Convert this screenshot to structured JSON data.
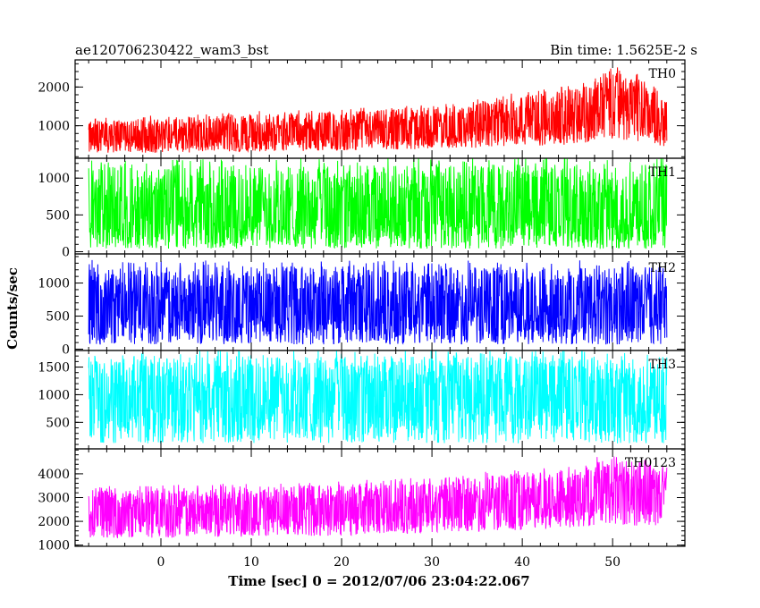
{
  "chart_data": {
    "type": "line",
    "title_left": "ae120706230422_wam3_bst",
    "title_right": "Bin time: 1.5625E-2 s",
    "xlabel": "Time [sec] 0 = 2012/07/06 23:04:22.067",
    "ylabel": "Counts/sec",
    "xlim": [
      -9.5,
      58
    ],
    "data_x_range": [
      -8,
      56
    ],
    "x_ticks": [
      0,
      10,
      20,
      30,
      40,
      50
    ],
    "x_tick_labels": [
      "0",
      "10",
      "20",
      "30",
      "40",
      "50"
    ],
    "panels": [
      {
        "name": "TH0",
        "color": "#ff0000",
        "ylim": [
          160,
          2700
        ],
        "y_ticks": [
          1000,
          2000
        ],
        "y_tick_labels": [
          "1000",
          "2000"
        ],
        "envelope": [
          {
            "x": -8,
            "low": 300,
            "mean": 700,
            "high": 1150
          },
          {
            "x": 0,
            "low": 300,
            "mean": 700,
            "high": 1200
          },
          {
            "x": 10,
            "low": 330,
            "mean": 760,
            "high": 1300
          },
          {
            "x": 20,
            "low": 360,
            "mean": 800,
            "high": 1350
          },
          {
            "x": 30,
            "low": 400,
            "mean": 900,
            "high": 1500
          },
          {
            "x": 38,
            "low": 450,
            "mean": 1000,
            "high": 1700
          },
          {
            "x": 45,
            "low": 500,
            "mean": 1150,
            "high": 1950
          },
          {
            "x": 50,
            "low": 650,
            "mean": 1600,
            "high": 2500
          },
          {
            "x": 53,
            "low": 600,
            "mean": 1450,
            "high": 2200
          },
          {
            "x": 56,
            "low": 450,
            "mean": 1050,
            "high": 1650
          }
        ]
      },
      {
        "name": "TH1",
        "color": "#00ff00",
        "ylim": [
          -30,
          1270
        ],
        "y_ticks": [
          0,
          500,
          1000
        ],
        "y_tick_labels": [
          "0",
          "500",
          "1000"
        ],
        "envelope": [
          {
            "x": -8,
            "low": 40,
            "mean": 500,
            "high": 1150
          },
          {
            "x": 56,
            "low": 40,
            "mean": 500,
            "high": 1200
          }
        ]
      },
      {
        "name": "TH2",
        "color": "#0000ff",
        "ylim": [
          -20,
          1440
        ],
        "y_ticks": [
          0,
          500,
          1000
        ],
        "y_tick_labels": [
          "0",
          "500",
          "1000"
        ],
        "envelope": [
          {
            "x": -8,
            "low": 70,
            "mean": 600,
            "high": 1250
          },
          {
            "x": 56,
            "low": 70,
            "mean": 600,
            "high": 1250
          }
        ]
      },
      {
        "name": "TH3",
        "color": "#00ffff",
        "ylim": [
          20,
          1800
        ],
        "y_ticks": [
          500,
          1000,
          1500
        ],
        "y_tick_labels": [
          "500",
          "1000",
          "1500"
        ],
        "envelope": [
          {
            "x": -8,
            "low": 120,
            "mean": 950,
            "high": 1700
          },
          {
            "x": 56,
            "low": 120,
            "mean": 950,
            "high": 1700
          }
        ]
      },
      {
        "name": "TH0123",
        "color": "#ff00ff",
        "ylim": [
          950,
          5050
        ],
        "y_ticks": [
          1000,
          2000,
          3000,
          4000
        ],
        "y_tick_labels": [
          "1000",
          "2000",
          "3000",
          "4000"
        ],
        "envelope": [
          {
            "x": -8,
            "low": 1300,
            "mean": 2300,
            "high": 3300
          },
          {
            "x": 0,
            "low": 1300,
            "mean": 2350,
            "high": 3400
          },
          {
            "x": 10,
            "low": 1350,
            "mean": 2400,
            "high": 3450
          },
          {
            "x": 20,
            "low": 1400,
            "mean": 2450,
            "high": 3550
          },
          {
            "x": 30,
            "low": 1500,
            "mean": 2600,
            "high": 3700
          },
          {
            "x": 38,
            "low": 1600,
            "mean": 2800,
            "high": 4000
          },
          {
            "x": 45,
            "low": 1700,
            "mean": 3000,
            "high": 4200
          },
          {
            "x": 50,
            "low": 1900,
            "mean": 3400,
            "high": 4700
          },
          {
            "x": 53,
            "low": 1800,
            "mean": 3250,
            "high": 4500
          },
          {
            "x": 56,
            "low": 1700,
            "mean": 3000,
            "high": 4300
          }
        ]
      }
    ]
  }
}
